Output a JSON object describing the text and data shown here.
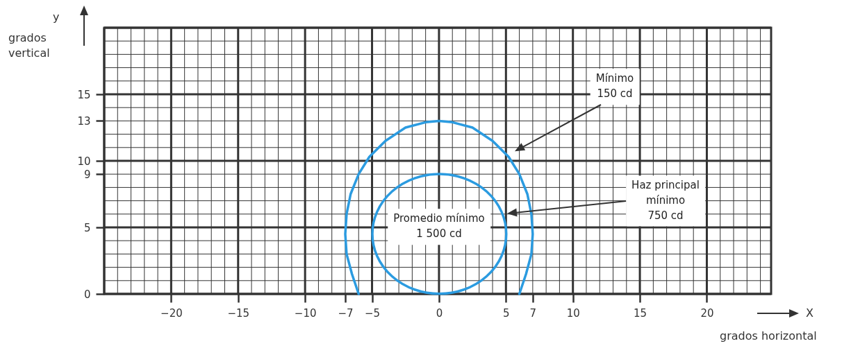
{
  "chart_data": {
    "type": "line",
    "xlabel": "X grados horizontal",
    "ylabel": "y grados vertical",
    "xlim": [
      -25,
      24.8
    ],
    "ylim": [
      0,
      20
    ],
    "xticks": [
      -20,
      -15,
      -10,
      -7,
      -5,
      0,
      5,
      7,
      10,
      15,
      20
    ],
    "yticks": [
      0,
      5,
      9,
      10,
      13,
      15
    ],
    "grid": true,
    "line_style": "solid",
    "marker": "none",
    "series": [
      {
        "color": "#2b9be0",
        "x": [
          -6,
          -6.5,
          -6.9,
          -7,
          -6.9,
          -6.6,
          -6,
          -5.2,
          -4,
          -2.5,
          -1,
          0,
          1,
          2.5,
          4,
          5.2,
          6,
          6.6,
          6.9,
          7,
          6.9,
          6.5,
          6
        ],
        "values": [
          0,
          1.5,
          3,
          4.5,
          6,
          7.5,
          9,
          10.3,
          11.5,
          12.5,
          12.9,
          13,
          12.9,
          12.5,
          11.5,
          10.3,
          9,
          7.5,
          6,
          4.5,
          3,
          1.5,
          0
        ]
      }
    ],
    "annotations": [
      "Mínimo\n150 cd",
      "Haz principal\nmínimo\n750 cd",
      "Promedio mínimo\n1 500 cd"
    ]
  }
}
